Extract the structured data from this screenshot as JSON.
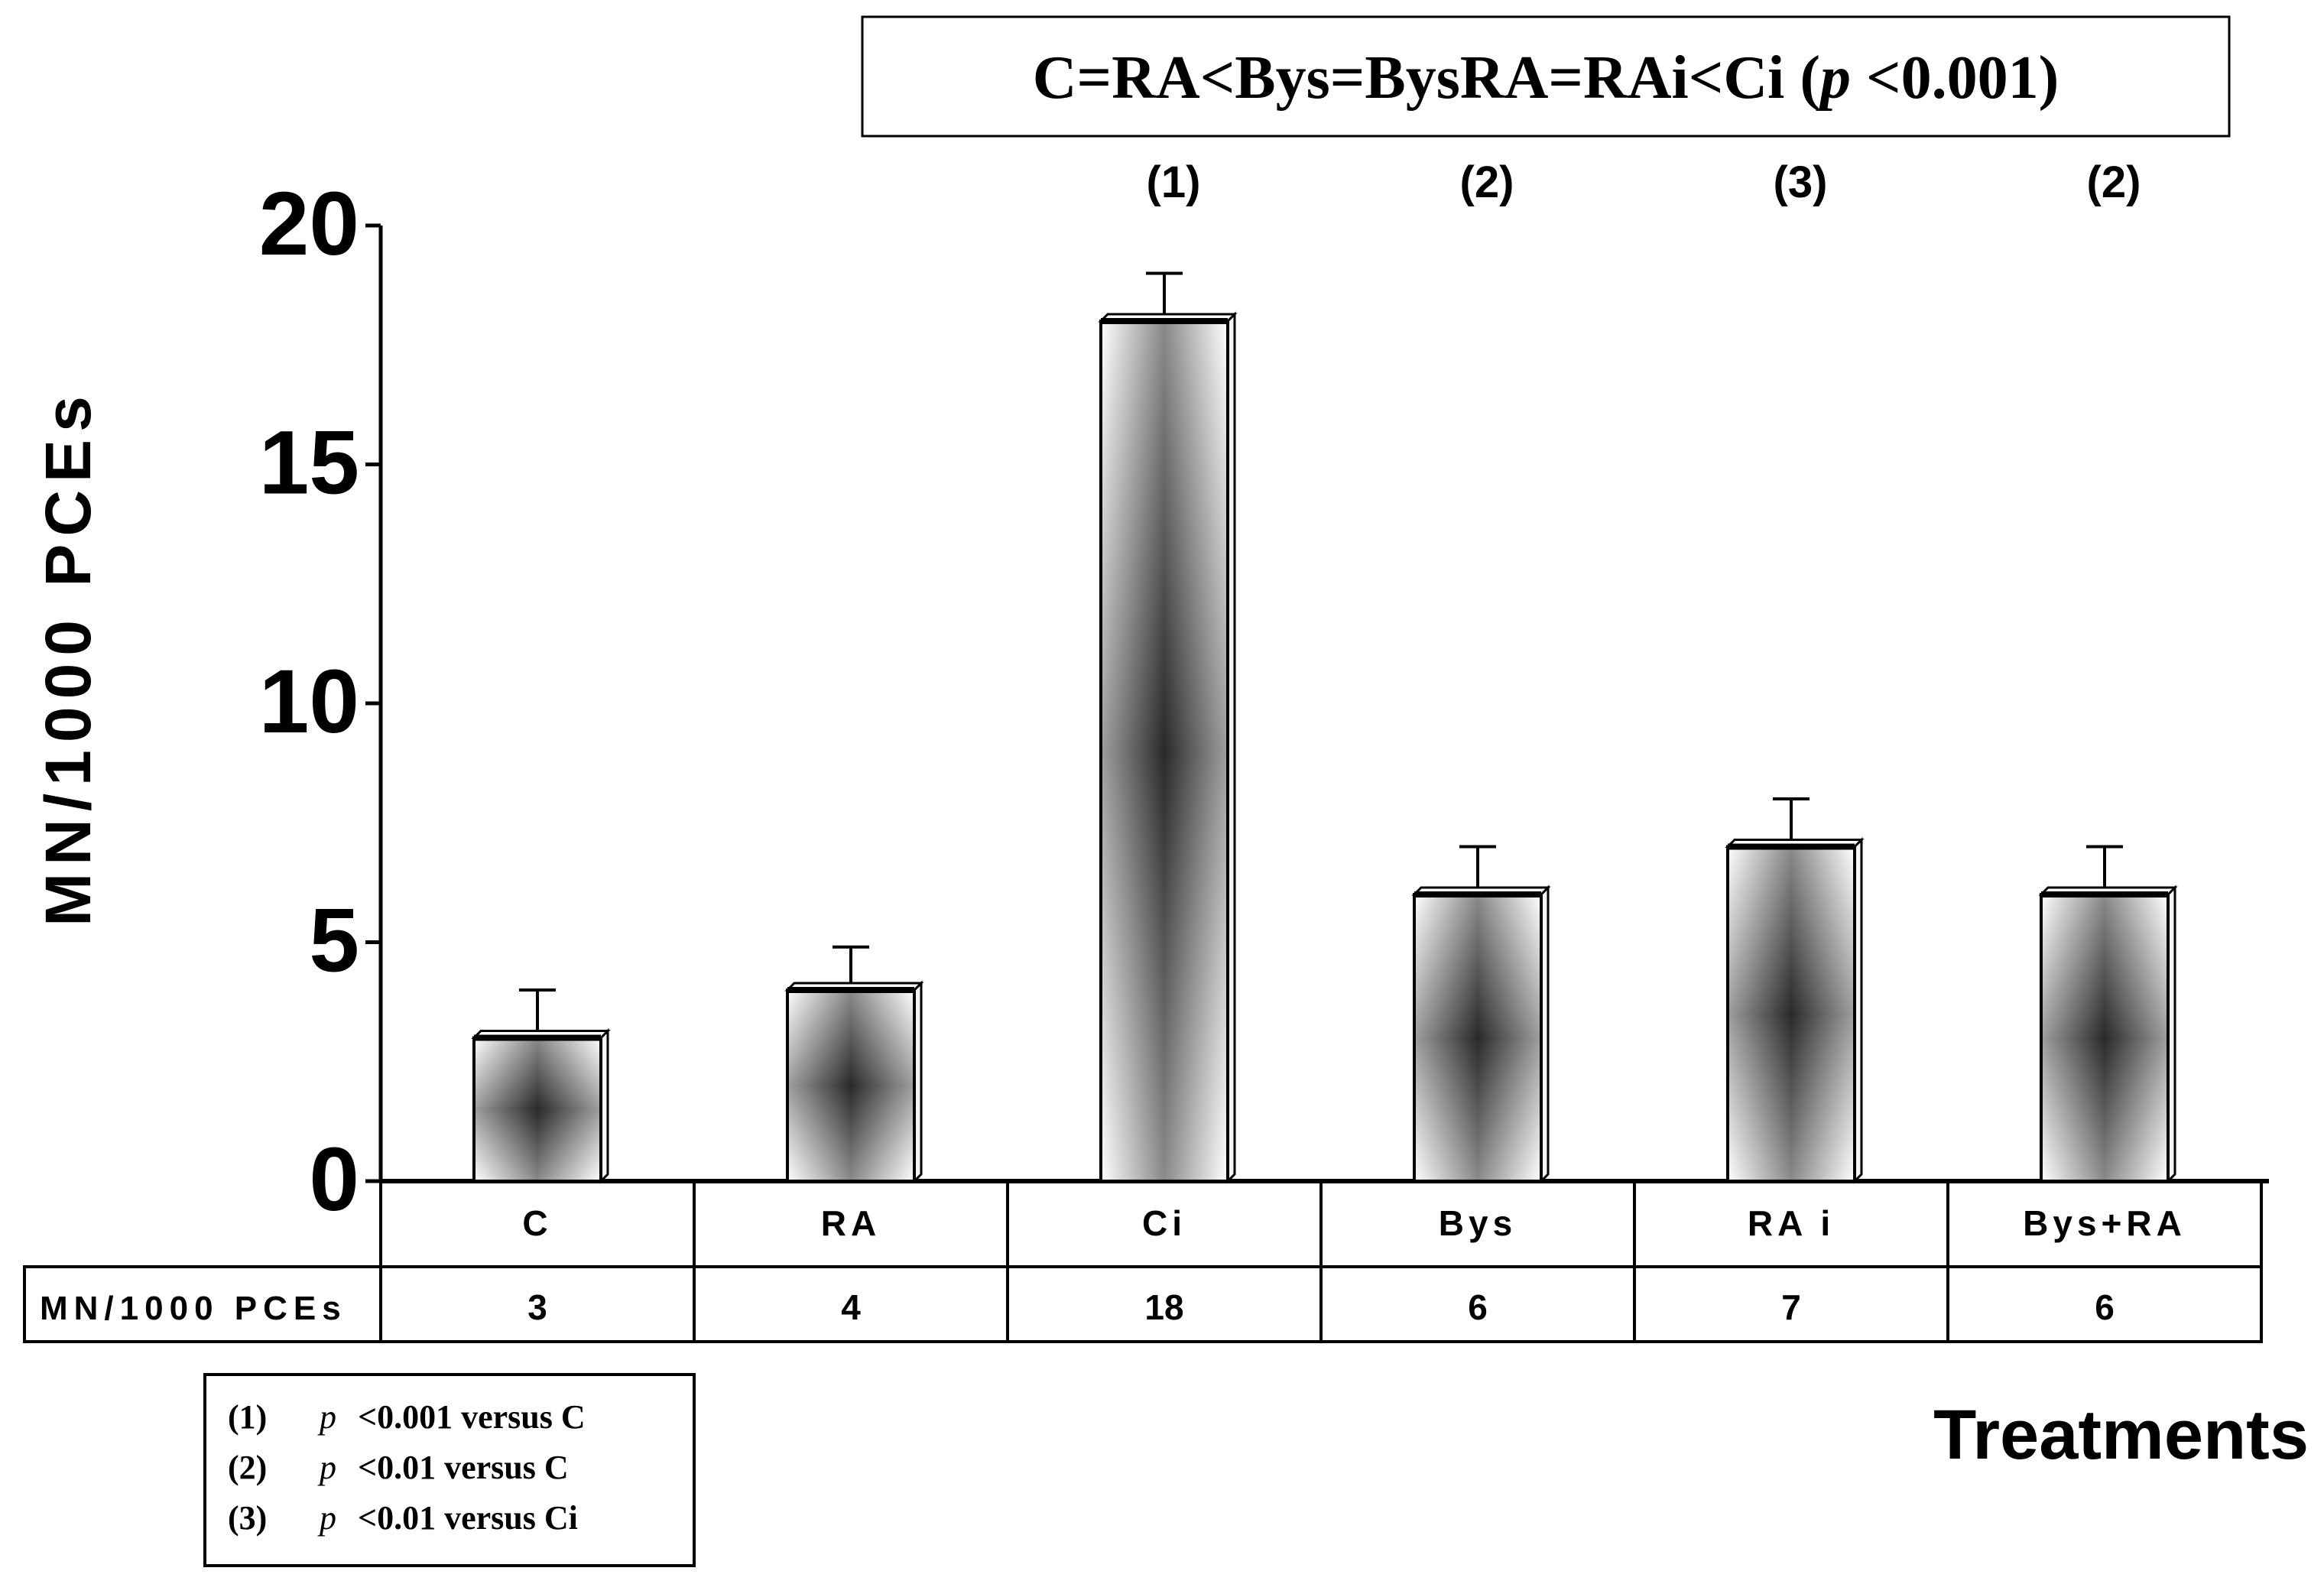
{
  "chart_data": {
    "type": "bar",
    "title": "C=RA<Bys=BysRA=RAi<Ci",
    "title_p_symbol": "p",
    "title_p_value": "<0.001",
    "ylabel": "MN/1000 PCEs",
    "xlabel": "Treatments",
    "ylim": [
      0,
      20
    ],
    "yticks": [
      "0",
      "5",
      "10",
      "15",
      "20"
    ],
    "categories": [
      "C",
      "RA",
      "Ci",
      "Bys",
      "RA i",
      "Bys+RA"
    ],
    "values": [
      3,
      4,
      18,
      6,
      7,
      6
    ],
    "error_top": [
      4,
      4.9,
      19,
      7,
      8,
      7
    ],
    "significance_marks": [
      "",
      "",
      "(1)",
      "(2)",
      "(3)",
      "(2)"
    ],
    "table_row_label": "MN/1000 PCEs",
    "table_values": [
      "3",
      "4",
      "18",
      "6",
      "7",
      "6"
    ],
    "legend": [
      {
        "mark": "(1)",
        "p": "p",
        "text": "<0.001 versus C"
      },
      {
        "mark": "(2)",
        "p": "p",
        "text": "<0.01   versus C"
      },
      {
        "mark": "(3)",
        "p": "p",
        "text": "<0.01  versus Ci"
      }
    ],
    "grid": false,
    "colors": {
      "bar_dark": "#2a2a2a",
      "bar_light": "#ffffff",
      "stroke": "#000000"
    }
  }
}
